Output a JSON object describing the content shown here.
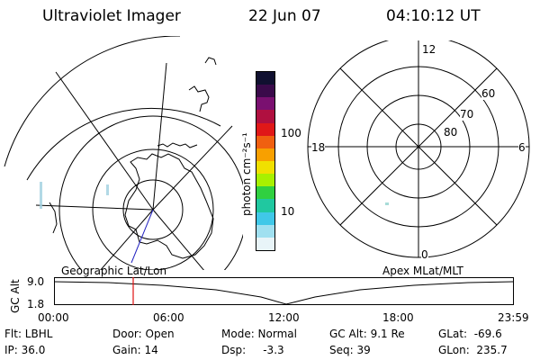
{
  "header": {
    "instrument": "Ultraviolet Imager",
    "date": "22 Jun 07",
    "time": "04:10:12 UT"
  },
  "left_map": {
    "label": "Geographic Lat/Lon"
  },
  "color_bar": {
    "unit": "photon cm⁻²s⁻¹",
    "ticks": [
      "100",
      "10"
    ],
    "colors": [
      "#101030",
      "#3a0a4a",
      "#7a1070",
      "#b01040",
      "#e01818",
      "#f06010",
      "#f8a000",
      "#f0e000",
      "#a8f000",
      "#30d040",
      "#20c8a0",
      "#40c8e8",
      "#a0e0f0",
      "#e8f4f8"
    ]
  },
  "right_polar": {
    "label": "Apex MLat/MLT",
    "mlt_labels": [
      "12",
      "18",
      "6",
      "0"
    ],
    "lat_labels": [
      "60",
      "70",
      "80"
    ]
  },
  "timeline": {
    "axis_title": "GC Alt",
    "y_ticks": [
      "9.0",
      "1.8"
    ],
    "x_ticks": [
      "00:00",
      "06:00",
      "12:00",
      "18:00",
      "23:59"
    ],
    "marker_color": "#e01010"
  },
  "status": {
    "filter": "Flt: LBHL",
    "ip": "IP: 36.0",
    "door": "Door: Open",
    "gain": "Gain: 14",
    "mode": "Mode: Normal",
    "dsp": "Dsp:     -3.3",
    "gc_alt": "GC Alt: 9.1 Re",
    "seq": "Seq: 39",
    "glat": "GLat:  -69.6",
    "glon": "GLon:  235.7"
  }
}
